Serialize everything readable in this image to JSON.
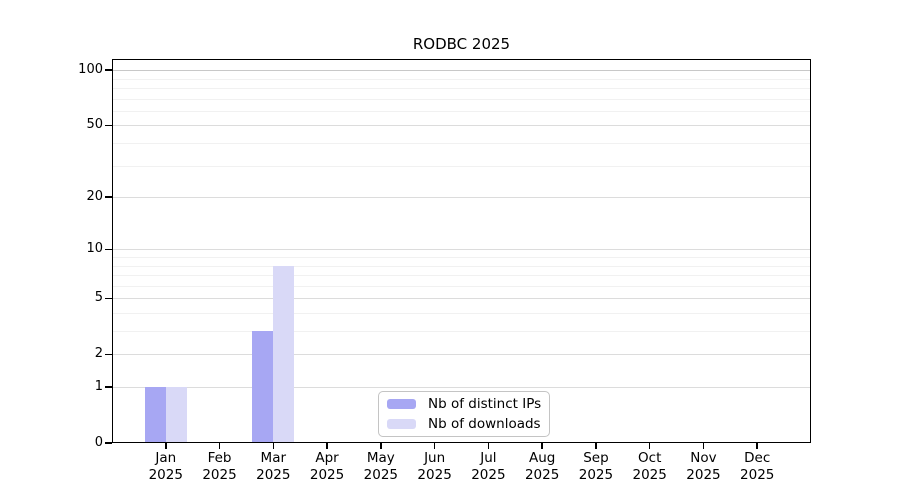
{
  "chart_data": {
    "type": "bar",
    "title": "RODBC 2025",
    "year_label": "2025",
    "categories": [
      "Jan",
      "Feb",
      "Mar",
      "Apr",
      "May",
      "Jun",
      "Jul",
      "Aug",
      "Sep",
      "Oct",
      "Nov",
      "Dec"
    ],
    "series": [
      {
        "name": "Nb of distinct IPs",
        "color": "#a7a7f3",
        "values": [
          1,
          0,
          3,
          0,
          0,
          0,
          0,
          0,
          0,
          0,
          0,
          0
        ]
      },
      {
        "name": "Nb of downloads",
        "color": "#d9d9f7",
        "values": [
          1,
          0,
          8,
          0,
          0,
          0,
          0,
          0,
          0,
          0,
          0,
          0
        ]
      }
    ],
    "yscale": "log1p",
    "y_ticks": [
      0,
      1,
      2,
      5,
      10,
      20,
      50,
      100
    ],
    "ylim": [
      0,
      115
    ],
    "grid": {
      "horizontal": true,
      "minor_lines": true,
      "vertical": false
    },
    "legend_position": "bottom-center-inside"
  },
  "colors": {
    "background": "#ffffff",
    "axis": "#000000",
    "grid_minor": "#f1f1f1",
    "grid_labeled": "#dcdcdc",
    "grid_top": "#c8c8c8",
    "legend_border": "#c4c4c4",
    "bar_distinct_ips": "#a7a7f3",
    "bar_downloads": "#d9d9f7"
  }
}
